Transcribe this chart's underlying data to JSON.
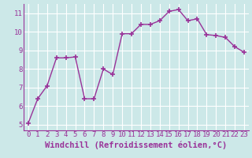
{
  "x": [
    0,
    1,
    2,
    3,
    4,
    5,
    6,
    7,
    8,
    9,
    10,
    11,
    12,
    13,
    14,
    15,
    16,
    17,
    18,
    19,
    20,
    21,
    22,
    23
  ],
  "y": [
    5.1,
    6.4,
    7.1,
    8.6,
    8.6,
    8.65,
    6.4,
    6.4,
    8.0,
    7.7,
    9.9,
    9.9,
    10.4,
    10.4,
    10.6,
    11.1,
    11.2,
    10.6,
    10.7,
    9.85,
    9.8,
    9.7,
    9.2,
    8.9
  ],
  "xlim": [
    -0.5,
    23.5
  ],
  "ylim": [
    4.7,
    11.5
  ],
  "yticks": [
    5,
    6,
    7,
    8,
    9,
    10,
    11
  ],
  "xticks": [
    0,
    1,
    2,
    3,
    4,
    5,
    6,
    7,
    8,
    9,
    10,
    11,
    12,
    13,
    14,
    15,
    16,
    17,
    18,
    19,
    20,
    21,
    22,
    23
  ],
  "xlabel": "Windchill (Refroidissement éolien,°C)",
  "line_color": "#993399",
  "marker_color": "#993399",
  "bg_color": "#cce8e8",
  "grid_color": "#ffffff",
  "tick_color": "#993399",
  "label_color": "#993399",
  "font_size": 6.5,
  "label_font_size": 7.5,
  "marker_size": 4,
  "line_width": 1.0
}
